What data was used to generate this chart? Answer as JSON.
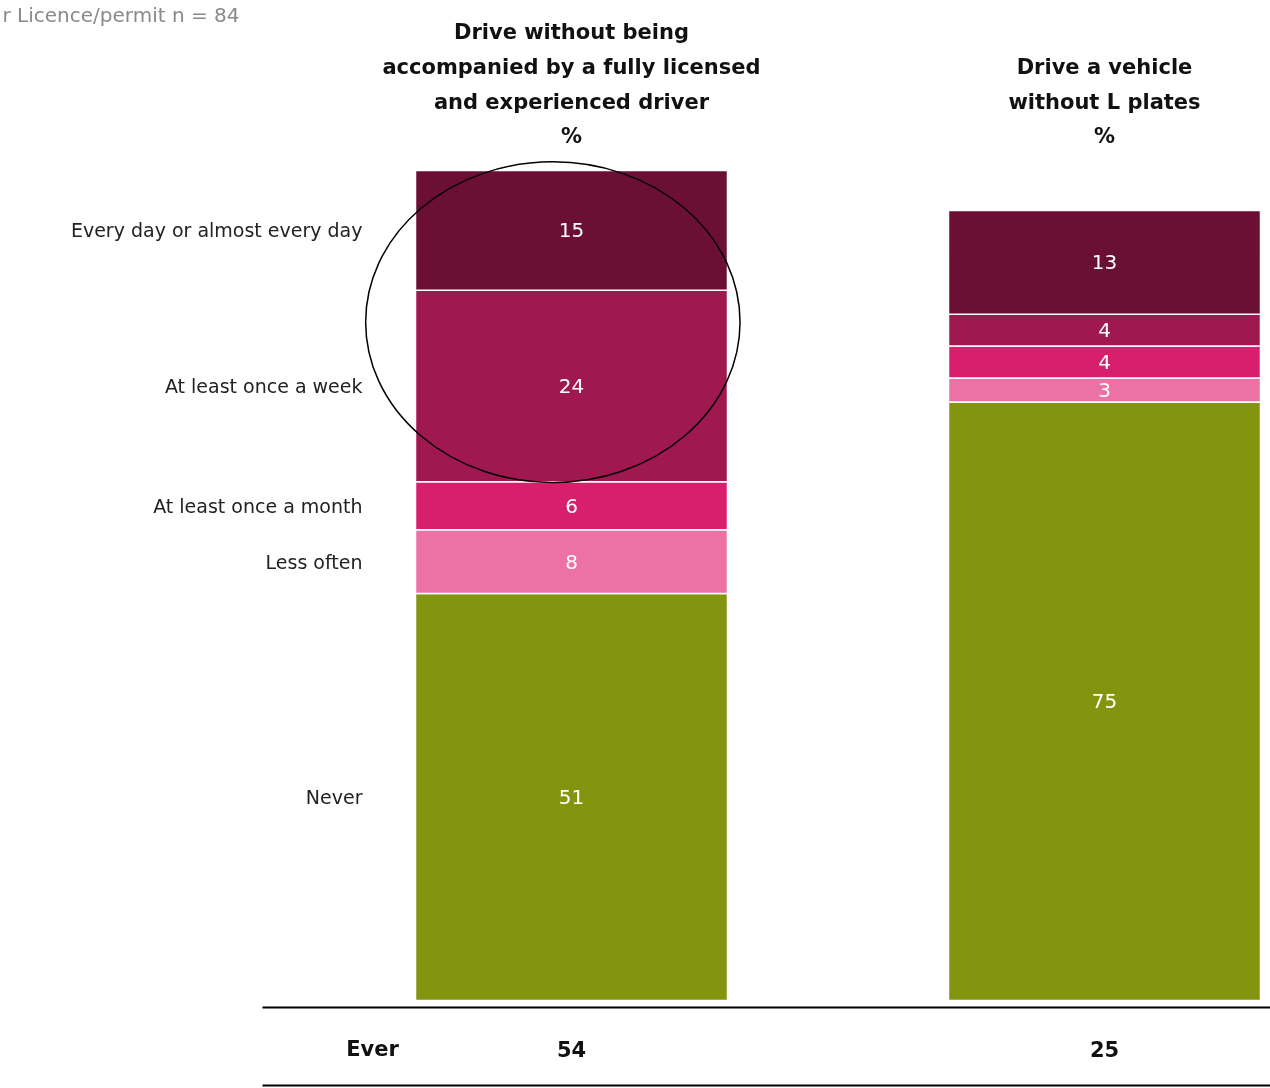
{
  "chart_data": {
    "type": "bar",
    "stacked": true,
    "data_labels": true,
    "categories": [
      "Drive without being\naccompanied by a fully licensed\nand experienced driver\n%",
      "Drive a vehicle\nwithout L plates\n%"
    ],
    "series": [
      {
        "name": "Never",
        "color": "#83940f",
        "values": [
          51,
          75
        ]
      },
      {
        "name": "Less often",
        "color": "#ec72a5",
        "values": [
          8,
          3
        ]
      },
      {
        "name": "At least once a month",
        "color": "#d81f6e",
        "values": [
          6,
          4
        ]
      },
      {
        "name": "At least once a week",
        "color": "#a01850",
        "values": [
          24,
          4
        ]
      },
      {
        "name": "Every day or almost every day",
        "color": "#6b0f35",
        "values": [
          15,
          13
        ]
      }
    ],
    "annotations": [
      "r Licence/permit n = 84",
      "Ever",
      "54",
      "25"
    ]
  }
}
